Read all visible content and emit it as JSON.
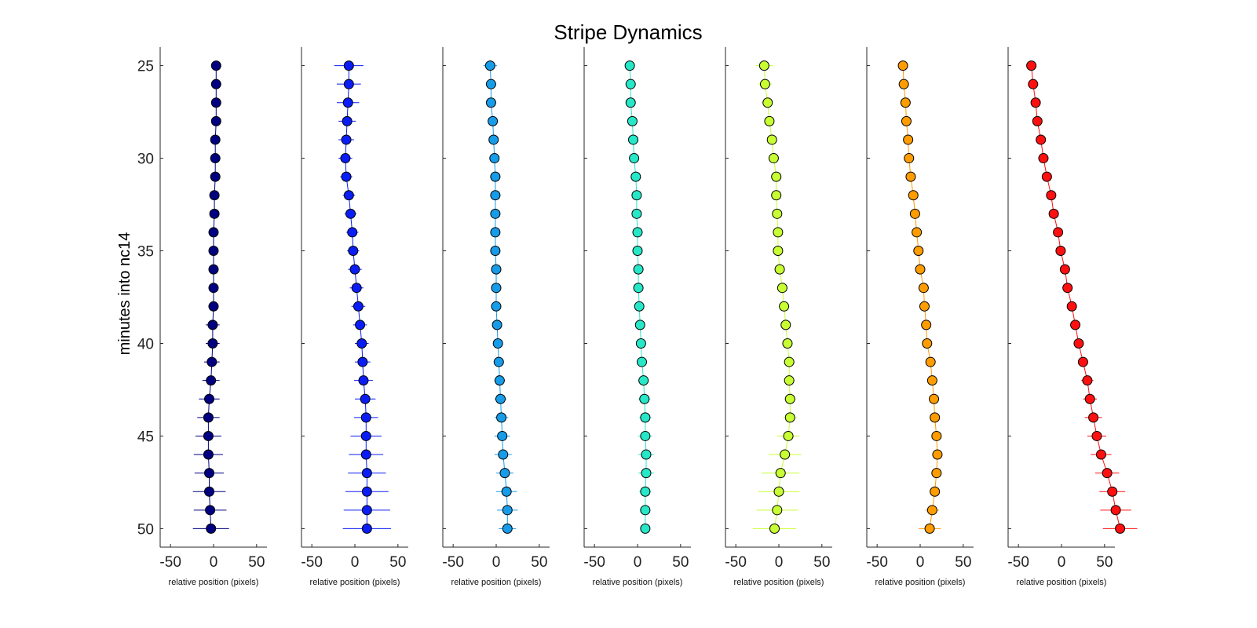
{
  "chart_data": {
    "type": "scatter",
    "title": "Stripe Dynamics",
    "ylabel": "minutes into nc14",
    "xlabel": "relative position (pixels)",
    "ylim": [
      24,
      51
    ],
    "yreverse": true,
    "yticks": [
      25,
      30,
      35,
      40,
      45,
      50
    ],
    "xlim": [
      -62,
      62
    ],
    "xticks": [
      -50,
      0,
      50
    ],
    "y": [
      25,
      26,
      27,
      28,
      29,
      30,
      31,
      32,
      33,
      34,
      35,
      36,
      37,
      38,
      39,
      40,
      41,
      42,
      43,
      44,
      45,
      46,
      47,
      48,
      49,
      50
    ],
    "panels": [
      {
        "color": "#000080",
        "x": [
          3,
          3,
          3,
          3,
          2,
          2,
          2,
          1,
          1,
          0,
          0,
          0,
          0,
          0,
          -1,
          -1,
          -2,
          -3,
          -5,
          -6,
          -6,
          -6,
          -5,
          -5,
          -4,
          -3
        ],
        "xerr": [
          2,
          2,
          2,
          3,
          3,
          3,
          3,
          3,
          3,
          3,
          4,
          4,
          5,
          6,
          8,
          8,
          9,
          10,
          12,
          13,
          15,
          17,
          17,
          19,
          19,
          21
        ]
      },
      {
        "color": "#0a1df5",
        "x": [
          -7,
          -7,
          -8,
          -9,
          -10,
          -11,
          -10,
          -7,
          -5,
          -3,
          -2,
          0,
          2,
          4,
          6,
          8,
          9,
          10,
          12,
          13,
          13,
          13,
          14,
          14,
          14,
          14
        ],
        "xerr": [
          17,
          14,
          13,
          10,
          9,
          8,
          7,
          7,
          7,
          7,
          7,
          8,
          8,
          8,
          8,
          8,
          9,
          11,
          12,
          14,
          18,
          20,
          22,
          25,
          27,
          28
        ]
      },
      {
        "color": "#169ce8",
        "x": [
          -7,
          -6,
          -6,
          -4,
          -3,
          -2,
          -1,
          -1,
          -1,
          -1,
          -1,
          0,
          0,
          0,
          1,
          2,
          3,
          4,
          5,
          6,
          7,
          8,
          10,
          12,
          13,
          13
        ],
        "xerr": [
          8,
          6,
          6,
          5,
          5,
          5,
          5,
          5,
          5,
          4,
          4,
          4,
          4,
          4,
          4,
          5,
          5,
          6,
          7,
          8,
          9,
          10,
          10,
          12,
          12,
          10
        ]
      },
      {
        "color": "#26e8c8",
        "x": [
          -9,
          -8,
          -8,
          -6,
          -5,
          -4,
          -2,
          -1,
          -1,
          0,
          0,
          1,
          1,
          2,
          3,
          4,
          5,
          7,
          8,
          9,
          9,
          10,
          10,
          9,
          9,
          9
        ],
        "xerr": [
          5,
          5,
          5,
          4,
          4,
          4,
          4,
          4,
          4,
          4,
          4,
          4,
          4,
          4,
          4,
          5,
          5,
          6,
          7,
          7,
          8,
          9,
          9,
          7,
          6,
          5
        ]
      },
      {
        "color": "#c8ff32",
        "x": [
          -17,
          -16,
          -13,
          -11,
          -8,
          -6,
          -3,
          -3,
          -2,
          -1,
          -1,
          1,
          4,
          6,
          8,
          10,
          12,
          12,
          13,
          13,
          11,
          7,
          2,
          0,
          -2,
          -5
        ],
        "xerr": [
          10,
          8,
          6,
          5,
          5,
          5,
          5,
          5,
          5,
          5,
          5,
          5,
          5,
          6,
          6,
          6,
          6,
          6,
          7,
          8,
          13,
          19,
          22,
          24,
          24,
          25
        ]
      },
      {
        "color": "#ff9c00",
        "x": [
          -20,
          -19,
          -17,
          -16,
          -14,
          -13,
          -11,
          -8,
          -6,
          -4,
          -2,
          0,
          4,
          5,
          7,
          8,
          12,
          14,
          16,
          17,
          19,
          20,
          19,
          17,
          14,
          11
        ],
        "xerr": [
          3,
          3,
          3,
          3,
          3,
          3,
          3,
          3,
          3,
          3,
          3,
          3,
          3,
          3,
          3,
          3,
          3,
          3,
          3,
          3,
          3,
          3,
          3,
          4,
          8,
          13
        ]
      },
      {
        "color": "#ff1010",
        "x": [
          -35,
          -33,
          -30,
          -28,
          -24,
          -21,
          -17,
          -12,
          -9,
          -4,
          -1,
          4,
          7,
          12,
          16,
          20,
          25,
          30,
          33,
          37,
          41,
          46,
          53,
          59,
          63,
          68
        ],
        "xerr": [
          3,
          3,
          3,
          3,
          3,
          3,
          3,
          3,
          3,
          3,
          3,
          3,
          3,
          3,
          3,
          3,
          5,
          7,
          8,
          10,
          11,
          12,
          14,
          15,
          18,
          20
        ]
      }
    ]
  }
}
